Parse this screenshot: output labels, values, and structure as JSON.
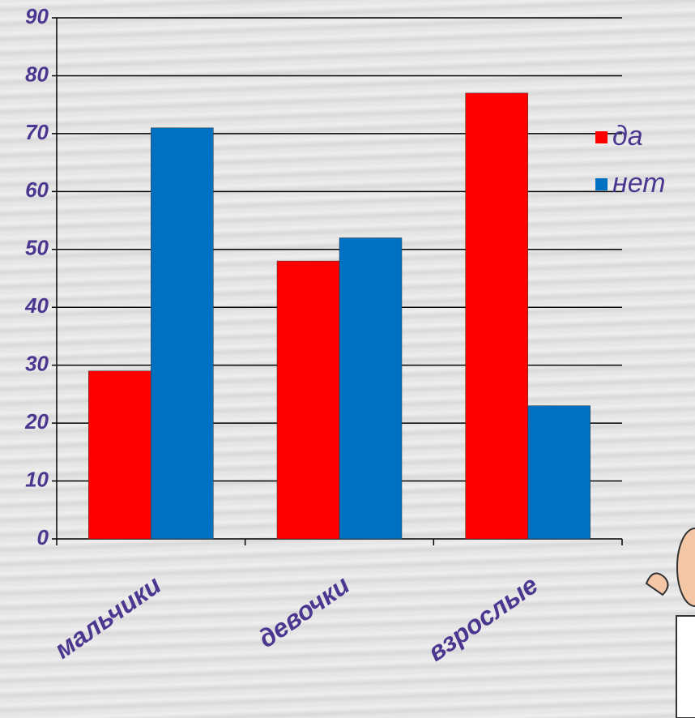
{
  "chart_data": {
    "type": "bar",
    "categories": [
      "мальчики",
      "девочки",
      "взрослые"
    ],
    "series": [
      {
        "name": "да",
        "color": "#ff0000",
        "values": [
          29,
          48,
          77
        ]
      },
      {
        "name": "нет",
        "color": "#0070c0",
        "values": [
          71,
          52,
          23
        ]
      }
    ],
    "ylim": [
      0,
      90
    ],
    "yticks": [
      0,
      10,
      20,
      30,
      40,
      50,
      60,
      70,
      80,
      90
    ],
    "grid": true,
    "legend": "right"
  }
}
